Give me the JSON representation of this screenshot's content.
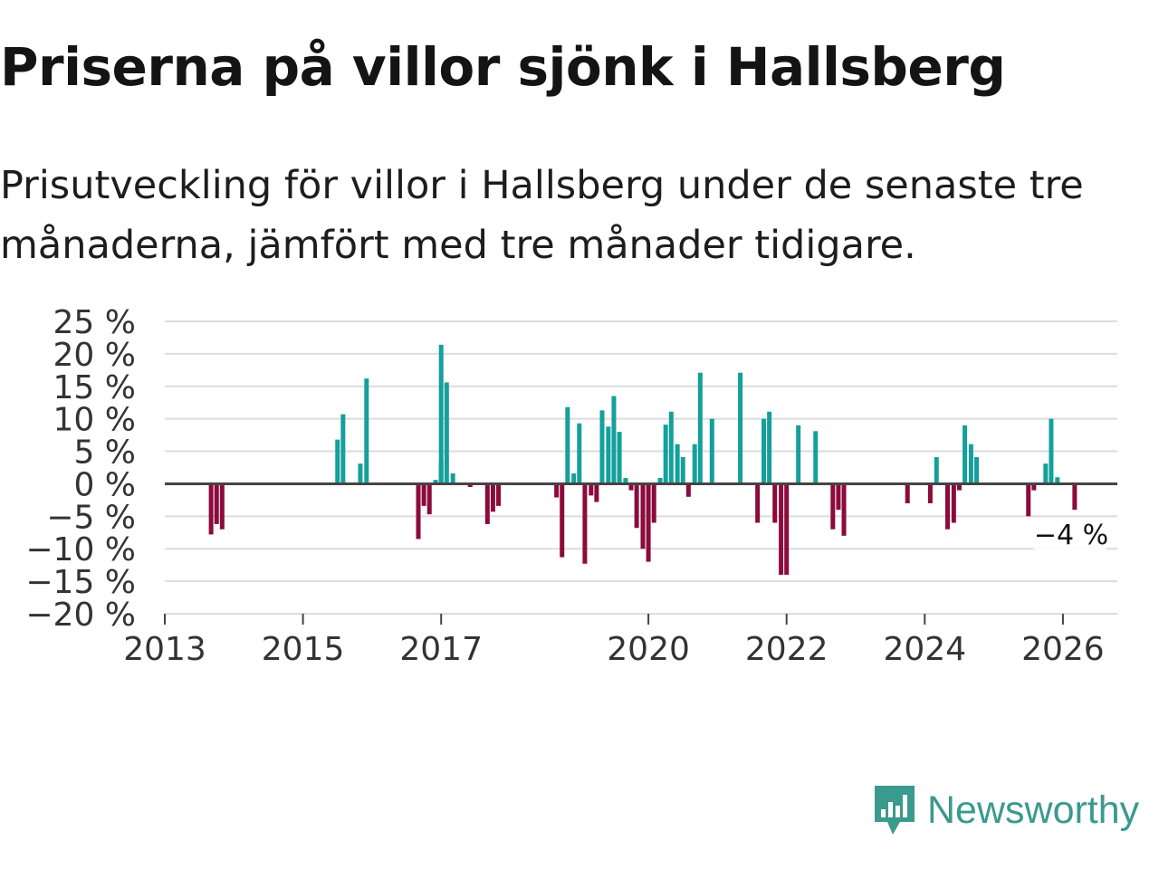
{
  "title": "Priserna på villor sjönk i Hallsberg",
  "subtitle": "Prisutveckling för villor i Hallsberg under de senaste tre månaderna, jämfört med tre månader tidigare.",
  "brand": {
    "name": "Newsworthy",
    "icon": "newsworthy-logo-icon"
  },
  "colors": {
    "positive": "#14a09c",
    "negative": "#8c0a3c",
    "grid": "#dcdcdc",
    "zero": "#444444",
    "brand": "#3a9a8d"
  },
  "chart_data": {
    "type": "bar",
    "title": "Priserna på villor sjönk i Hallsberg",
    "ylabel": "",
    "xlabel": "",
    "ylim": [
      -20,
      25
    ],
    "xlim": [
      2013,
      2026.7
    ],
    "yticks": [
      25,
      20,
      15,
      10,
      5,
      0,
      -5,
      -10,
      -15,
      -20
    ],
    "ytick_labels": [
      "25 %",
      "20 %",
      "15 %",
      "10 %",
      "5 %",
      "0 %",
      "−5 %",
      "−10 %",
      "−15 %",
      "−20 %"
    ],
    "xticks": [
      2013,
      2015,
      2017,
      2020,
      2022,
      2024,
      2026
    ],
    "xtick_labels": [
      "2013",
      "2015",
      "2017",
      "2020",
      "2022",
      "2024",
      "2026"
    ],
    "grid": true,
    "annotation": {
      "label": "−4 %",
      "x": 2026.17,
      "y": -4
    },
    "points": [
      {
        "x": 2013.67,
        "y": -7.8
      },
      {
        "x": 2013.75,
        "y": -6.2
      },
      {
        "x": 2013.83,
        "y": -7
      },
      {
        "x": 2015.5,
        "y": 6.8
      },
      {
        "x": 2015.58,
        "y": 10.7
      },
      {
        "x": 2015.83,
        "y": 3.1
      },
      {
        "x": 2015.92,
        "y": 16.2
      },
      {
        "x": 2016.67,
        "y": -8.5
      },
      {
        "x": 2016.75,
        "y": -3.4
      },
      {
        "x": 2016.83,
        "y": -4.7
      },
      {
        "x": 2016.92,
        "y": 0.6
      },
      {
        "x": 2017.0,
        "y": 3.5
      },
      {
        "x": 2017.0,
        "y": 21.4
      },
      {
        "x": 2017.08,
        "y": 15.6
      },
      {
        "x": 2017.17,
        "y": 1.6
      },
      {
        "x": 2017.42,
        "y": -0.5
      },
      {
        "x": 2017.67,
        "y": -6.2
      },
      {
        "x": 2017.75,
        "y": -4.3
      },
      {
        "x": 2017.83,
        "y": -3.4
      },
      {
        "x": 2018.67,
        "y": -2.1
      },
      {
        "x": 2018.75,
        "y": -11.3
      },
      {
        "x": 2018.83,
        "y": 11.8
      },
      {
        "x": 2018.92,
        "y": 1.6
      },
      {
        "x": 2019.0,
        "y": 9.3
      },
      {
        "x": 2019.08,
        "y": -12.3
      },
      {
        "x": 2019.17,
        "y": -1.8
      },
      {
        "x": 2019.25,
        "y": -2.8
      },
      {
        "x": 2019.33,
        "y": 11.3
      },
      {
        "x": 2019.42,
        "y": 8.8
      },
      {
        "x": 2019.5,
        "y": 13.5
      },
      {
        "x": 2019.58,
        "y": 8
      },
      {
        "x": 2019.67,
        "y": 0.9
      },
      {
        "x": 2019.75,
        "y": -1
      },
      {
        "x": 2019.83,
        "y": -6.8
      },
      {
        "x": 2019.92,
        "y": -10
      },
      {
        "x": 2020.0,
        "y": -12
      },
      {
        "x": 2020.08,
        "y": -6
      },
      {
        "x": 2020.17,
        "y": 0.9
      },
      {
        "x": 2020.25,
        "y": 9.1
      },
      {
        "x": 2020.33,
        "y": 11.1
      },
      {
        "x": 2020.42,
        "y": 6.1
      },
      {
        "x": 2020.5,
        "y": 4.1
      },
      {
        "x": 2020.58,
        "y": -2
      },
      {
        "x": 2020.67,
        "y": 6.1
      },
      {
        "x": 2020.75,
        "y": 17.1
      },
      {
        "x": 2020.92,
        "y": 10
      },
      {
        "x": 2021.33,
        "y": 17.1
      },
      {
        "x": 2021.58,
        "y": -6
      },
      {
        "x": 2021.67,
        "y": 10
      },
      {
        "x": 2021.75,
        "y": 11.1
      },
      {
        "x": 2021.83,
        "y": -6
      },
      {
        "x": 2021.92,
        "y": -14
      },
      {
        "x": 2022.0,
        "y": -14
      },
      {
        "x": 2022.17,
        "y": 9
      },
      {
        "x": 2022.42,
        "y": 8.1
      },
      {
        "x": 2022.67,
        "y": -7
      },
      {
        "x": 2022.75,
        "y": -4
      },
      {
        "x": 2022.83,
        "y": -8
      },
      {
        "x": 2023.75,
        "y": -3
      },
      {
        "x": 2024.08,
        "y": -3
      },
      {
        "x": 2024.17,
        "y": 4.1
      },
      {
        "x": 2024.33,
        "y": -7
      },
      {
        "x": 2024.42,
        "y": -6
      },
      {
        "x": 2024.5,
        "y": -1
      },
      {
        "x": 2024.58,
        "y": 9
      },
      {
        "x": 2024.67,
        "y": 6.1
      },
      {
        "x": 2024.75,
        "y": 4.1
      },
      {
        "x": 2025.5,
        "y": -5
      },
      {
        "x": 2025.58,
        "y": -1
      },
      {
        "x": 2025.75,
        "y": 3.1
      },
      {
        "x": 2025.83,
        "y": 10
      },
      {
        "x": 2025.92,
        "y": 1
      },
      {
        "x": 2026.17,
        "y": -4
      }
    ]
  }
}
